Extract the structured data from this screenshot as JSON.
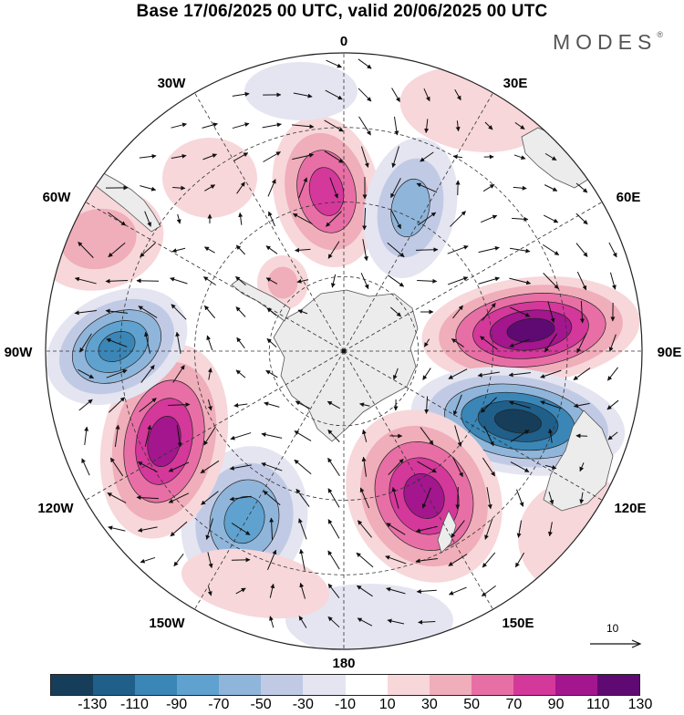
{
  "title": "Base 17/06/2025 00 UTC, valid 20/06/2025 00 UTC",
  "brand": "MODES",
  "brand_mark": "®",
  "longitude_labels": {
    "deg0": "0",
    "deg30e": "30E",
    "deg60e": "60E",
    "deg90e": "90E",
    "deg120e": "120E",
    "deg150e": "150E",
    "deg180": "180",
    "deg150w": "150W",
    "deg120w": "120W",
    "deg90w": "90W",
    "deg60w": "60W",
    "deg30w": "30W"
  },
  "reference_vector_label": "10",
  "colorbar": {
    "colors": [
      "#163e5a",
      "#1f5f8a",
      "#3a86b6",
      "#5fa2cf",
      "#8fb5da",
      "#c1cae5",
      "#e4e5f1",
      "#ffffff",
      "#f7d7da",
      "#f0adba",
      "#e86fa5",
      "#d4389a",
      "#a3168e",
      "#5f0a72"
    ],
    "labels": [
      "-130",
      "-110",
      "-90",
      "-70",
      "-50",
      "-30",
      "-10",
      "10",
      "30",
      "50",
      "70",
      "90",
      "110",
      "130"
    ]
  },
  "colors": {
    "land": "#ececec",
    "grid": "#333333",
    "vectors": "#111111"
  }
}
